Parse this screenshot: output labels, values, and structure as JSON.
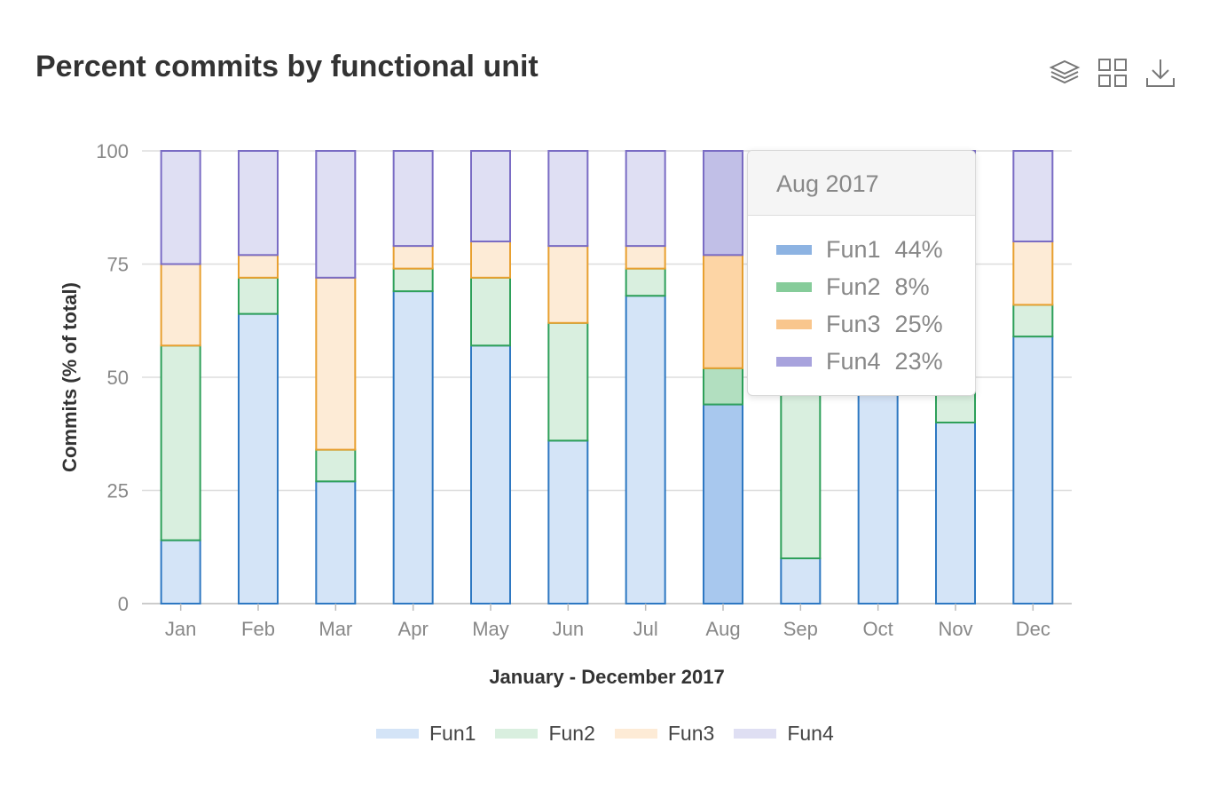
{
  "title": "Percent commits by functional unit",
  "toolbar": {
    "icons": [
      "layers-icon",
      "grid-view-icon",
      "download-icon"
    ]
  },
  "colors": {
    "Fun1": {
      "fill": "#d4e4f7",
      "stroke": "#2e78c2",
      "hover": "#a8c8ee",
      "swatch": "#8db3e2"
    },
    "Fun2": {
      "fill": "#d9efdf",
      "stroke": "#2ea05a",
      "hover": "#b2dfc0",
      "swatch": "#86cc9a"
    },
    "Fun3": {
      "fill": "#fdebd6",
      "stroke": "#e8a030",
      "hover": "#fdd5a5",
      "swatch": "#f9c68d"
    },
    "Fun4": {
      "fill": "#dfdff3",
      "stroke": "#7a6cc4",
      "hover": "#c1bfe7",
      "swatch": "#a8a3dd"
    }
  },
  "chart_data": {
    "type": "bar",
    "stacked": true,
    "title": "Percent commits by functional unit",
    "xlabel": "January - December 2017",
    "ylabel": "Commits (% of total)",
    "ylim": [
      0,
      100
    ],
    "yticks": [
      0,
      25,
      50,
      75,
      100
    ],
    "grid": true,
    "legend_position": "bottom",
    "categories": [
      "Jan",
      "Feb",
      "Mar",
      "Apr",
      "May",
      "Jun",
      "Jul",
      "Aug",
      "Sep",
      "Oct",
      "Nov",
      "Dec"
    ],
    "series": [
      {
        "name": "Fun1",
        "values": [
          14,
          64,
          27,
          69,
          57,
          36,
          68,
          44,
          10,
          54,
          40,
          59
        ]
      },
      {
        "name": "Fun2",
        "values": [
          43,
          8,
          7,
          5,
          15,
          26,
          6,
          8,
          44,
          8,
          14,
          7
        ]
      },
      {
        "name": "Fun3",
        "values": [
          18,
          5,
          38,
          5,
          8,
          17,
          5,
          25,
          21,
          15,
          20,
          14
        ]
      },
      {
        "name": "Fun4",
        "values": [
          25,
          23,
          28,
          21,
          20,
          21,
          21,
          23,
          25,
          23,
          26,
          20
        ]
      }
    ],
    "highlight_index": 7
  },
  "tooltip": {
    "header": "Aug 2017",
    "rows": [
      {
        "name": "Fun1",
        "value": "44%"
      },
      {
        "name": "Fun2",
        "value": "8%"
      },
      {
        "name": "Fun3",
        "value": "25%"
      },
      {
        "name": "Fun4",
        "value": "23%"
      }
    ]
  },
  "legend": [
    "Fun1",
    "Fun2",
    "Fun3",
    "Fun4"
  ]
}
